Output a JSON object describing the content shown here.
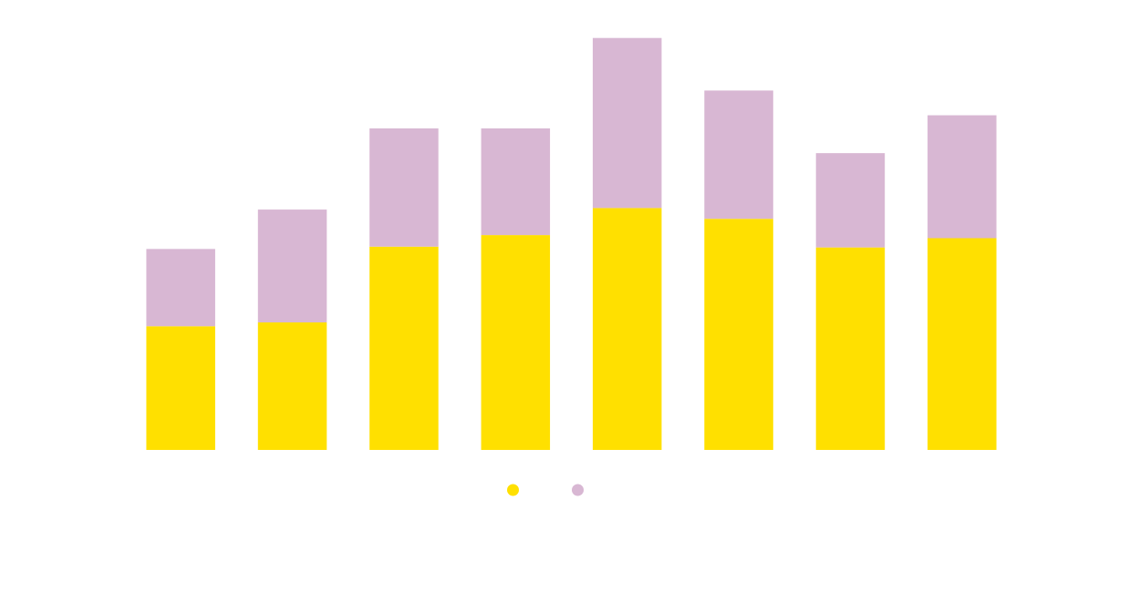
{
  "chart_data": {
    "type": "bar",
    "stacked": true,
    "categories": [
      "",
      "",
      "",
      "",
      "",
      "",
      "",
      ""
    ],
    "series": [
      {
        "name": "",
        "color": "#FFE000",
        "values": [
          1.6,
          1.65,
          2.63,
          2.78,
          3.13,
          2.99,
          2.62,
          2.74
        ]
      },
      {
        "name": "",
        "color": "#D8B7D3",
        "values": [
          1.0,
          1.46,
          1.53,
          1.38,
          2.2,
          1.66,
          1.22,
          1.59
        ]
      }
    ],
    "ylim": [
      0,
      5.35
    ],
    "grid": false,
    "legend": {
      "position": "bottom-center"
    }
  }
}
